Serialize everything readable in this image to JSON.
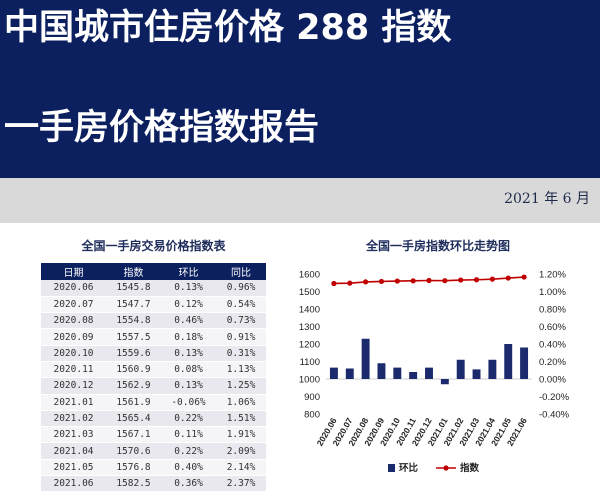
{
  "header": {
    "title_line1": "中国城市住房价格 288 指数",
    "title_line2": "一手房价格指数报告",
    "date": "2021 年 6 月"
  },
  "table": {
    "title": "全国一手房交易价格指数表",
    "columns": [
      "日期",
      "指数",
      "环比",
      "同比"
    ],
    "rows": [
      [
        "2020.06",
        "1545.8",
        "0.13%",
        "0.96%"
      ],
      [
        "2020.07",
        "1547.7",
        "0.12%",
        "0.54%"
      ],
      [
        "2020.08",
        "1554.8",
        "0.46%",
        "0.73%"
      ],
      [
        "2020.09",
        "1557.5",
        "0.18%",
        "0.91%"
      ],
      [
        "2020.10",
        "1559.6",
        "0.13%",
        "0.31%"
      ],
      [
        "2020.11",
        "1560.9",
        "0.08%",
        "1.13%"
      ],
      [
        "2020.12",
        "1562.9",
        "0.13%",
        "1.25%"
      ],
      [
        "2021.01",
        "1561.9",
        "-0.06%",
        "1.06%"
      ],
      [
        "2021.02",
        "1565.4",
        "0.22%",
        "1.51%"
      ],
      [
        "2021.03",
        "1567.1",
        "0.11%",
        "1.91%"
      ],
      [
        "2021.04",
        "1570.6",
        "0.22%",
        "2.09%"
      ],
      [
        "2021.05",
        "1576.8",
        "0.40%",
        "2.14%"
      ],
      [
        "2021.06",
        "1582.5",
        "0.36%",
        "2.37%"
      ]
    ]
  },
  "colors": {
    "banner": "#0c2060",
    "bar": "#1a2a6c",
    "line": "#c00000",
    "date_band": "#d9d9d9"
  },
  "chart_data": {
    "type": "bar+line",
    "title": "全国一手房指数环比走势图",
    "categories": [
      "2020.06",
      "2020.07",
      "2020.08",
      "2020.09",
      "2020.10",
      "2020.11",
      "2020.12",
      "2021.01",
      "2021.02",
      "2021.03",
      "2021.04",
      "2021.05",
      "2021.06"
    ],
    "series": [
      {
        "name": "环比",
        "type": "bar",
        "axis": "right",
        "values": [
          0.13,
          0.12,
          0.46,
          0.18,
          0.13,
          0.08,
          0.13,
          -0.06,
          0.22,
          0.11,
          0.22,
          0.4,
          0.36
        ]
      },
      {
        "name": "指数",
        "type": "line",
        "axis": "left",
        "values": [
          1545.8,
          1547.7,
          1554.8,
          1557.5,
          1559.6,
          1560.9,
          1562.9,
          1561.9,
          1565.4,
          1567.1,
          1570.6,
          1576.8,
          1582.5
        ]
      }
    ],
    "left_axis": {
      "min": 800,
      "max": 1600,
      "ticks": [
        "1600",
        "1500",
        "1400",
        "1300",
        "1200",
        "1100",
        "1000",
        "900",
        "800"
      ]
    },
    "right_axis": {
      "min": -0.4,
      "max": 1.2,
      "ticks": [
        "1.20%",
        "1.00%",
        "0.80%",
        "0.60%",
        "0.40%",
        "0.20%",
        "0.00%",
        "-0.20%",
        "-0.40%"
      ]
    },
    "legend_position": "bottom",
    "grid": false
  }
}
